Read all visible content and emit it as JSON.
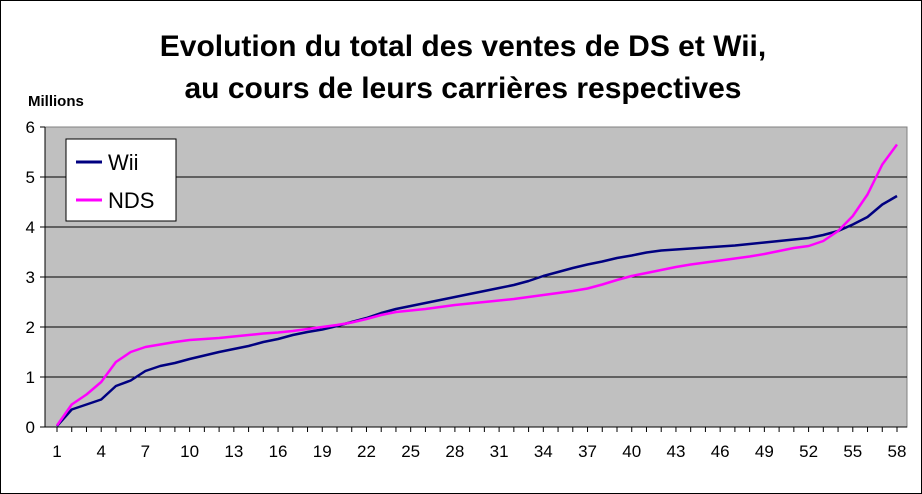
{
  "chart_data": {
    "type": "line",
    "title": "Evolution du total des ventes de DS et Wii,",
    "subtitle": "au cours de leurs carrières respectives",
    "ylabel": "Millions",
    "xlabel": "",
    "ylim": [
      0,
      6
    ],
    "yticks": [
      0,
      1,
      2,
      3,
      4,
      5,
      6
    ],
    "xlim": [
      1,
      58
    ],
    "xticks": [
      1,
      4,
      7,
      10,
      13,
      16,
      19,
      22,
      25,
      28,
      31,
      34,
      37,
      40,
      43,
      46,
      49,
      52,
      55,
      58
    ],
    "grid": "horizontal",
    "legend": "top-left",
    "plot_background": "#c0c0c0",
    "x": [
      1,
      2,
      3,
      4,
      5,
      6,
      7,
      8,
      9,
      10,
      11,
      12,
      13,
      14,
      15,
      16,
      17,
      18,
      19,
      20,
      21,
      22,
      23,
      24,
      25,
      26,
      27,
      28,
      29,
      30,
      31,
      32,
      33,
      34,
      35,
      36,
      37,
      38,
      39,
      40,
      41,
      42,
      43,
      44,
      45,
      46,
      47,
      48,
      49,
      50,
      51,
      52,
      53,
      54,
      55,
      56,
      57,
      58
    ],
    "series": [
      {
        "name": "Wii",
        "color": "#000080",
        "values": [
          0.02,
          0.35,
          0.45,
          0.55,
          0.82,
          0.93,
          1.12,
          1.22,
          1.28,
          1.36,
          1.43,
          1.5,
          1.56,
          1.62,
          1.7,
          1.76,
          1.84,
          1.9,
          1.95,
          2.02,
          2.1,
          2.18,
          2.28,
          2.36,
          2.42,
          2.48,
          2.54,
          2.6,
          2.66,
          2.72,
          2.78,
          2.84,
          2.92,
          3.02,
          3.1,
          3.18,
          3.25,
          3.31,
          3.38,
          3.43,
          3.49,
          3.53,
          3.55,
          3.57,
          3.59,
          3.61,
          3.63,
          3.66,
          3.69,
          3.72,
          3.75,
          3.78,
          3.84,
          3.92,
          4.05,
          4.2,
          4.45,
          4.62
        ]
      },
      {
        "name": "NDS",
        "color": "#ff00ff",
        "values": [
          0.03,
          0.45,
          0.65,
          0.9,
          1.3,
          1.5,
          1.6,
          1.65,
          1.7,
          1.74,
          1.76,
          1.78,
          1.81,
          1.84,
          1.87,
          1.89,
          1.92,
          1.96,
          2.0,
          2.04,
          2.09,
          2.16,
          2.24,
          2.3,
          2.33,
          2.36,
          2.4,
          2.44,
          2.47,
          2.5,
          2.53,
          2.56,
          2.6,
          2.64,
          2.68,
          2.72,
          2.77,
          2.85,
          2.94,
          3.02,
          3.08,
          3.14,
          3.2,
          3.25,
          3.29,
          3.33,
          3.37,
          3.41,
          3.46,
          3.52,
          3.58,
          3.62,
          3.72,
          3.92,
          4.22,
          4.65,
          5.25,
          5.65
        ]
      }
    ]
  }
}
